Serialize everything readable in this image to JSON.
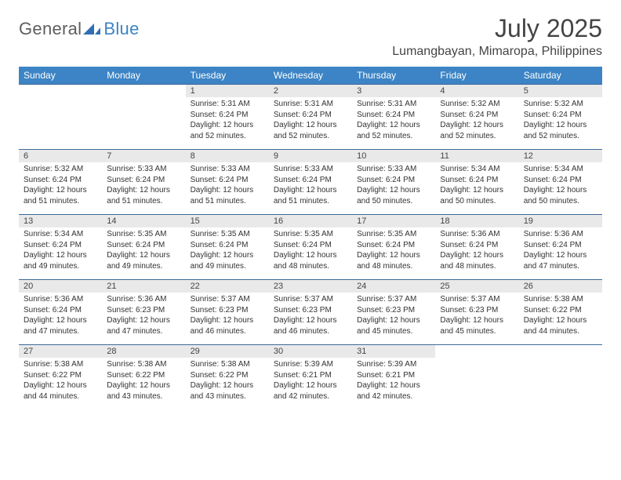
{
  "brand": {
    "part1": "General",
    "part2": "Blue",
    "mark_color": "#2f70b3"
  },
  "title": "July 2025",
  "subtitle": "Lumangbayan, Mimaropa, Philippines",
  "colors": {
    "header_bg": "#3c84c5",
    "header_text": "#ffffff",
    "daynum_bg": "#e9e9e9",
    "row_border": "#3c6a99",
    "page_bg": "#ffffff",
    "body_text": "#333333"
  },
  "days_of_week": [
    "Sunday",
    "Monday",
    "Tuesday",
    "Wednesday",
    "Thursday",
    "Friday",
    "Saturday"
  ],
  "weeks": [
    [
      null,
      null,
      {
        "n": "1",
        "sunrise": "5:31 AM",
        "sunset": "6:24 PM",
        "daylight": "12 hours and 52 minutes."
      },
      {
        "n": "2",
        "sunrise": "5:31 AM",
        "sunset": "6:24 PM",
        "daylight": "12 hours and 52 minutes."
      },
      {
        "n": "3",
        "sunrise": "5:31 AM",
        "sunset": "6:24 PM",
        "daylight": "12 hours and 52 minutes."
      },
      {
        "n": "4",
        "sunrise": "5:32 AM",
        "sunset": "6:24 PM",
        "daylight": "12 hours and 52 minutes."
      },
      {
        "n": "5",
        "sunrise": "5:32 AM",
        "sunset": "6:24 PM",
        "daylight": "12 hours and 52 minutes."
      }
    ],
    [
      {
        "n": "6",
        "sunrise": "5:32 AM",
        "sunset": "6:24 PM",
        "daylight": "12 hours and 51 minutes."
      },
      {
        "n": "7",
        "sunrise": "5:33 AM",
        "sunset": "6:24 PM",
        "daylight": "12 hours and 51 minutes."
      },
      {
        "n": "8",
        "sunrise": "5:33 AM",
        "sunset": "6:24 PM",
        "daylight": "12 hours and 51 minutes."
      },
      {
        "n": "9",
        "sunrise": "5:33 AM",
        "sunset": "6:24 PM",
        "daylight": "12 hours and 51 minutes."
      },
      {
        "n": "10",
        "sunrise": "5:33 AM",
        "sunset": "6:24 PM",
        "daylight": "12 hours and 50 minutes."
      },
      {
        "n": "11",
        "sunrise": "5:34 AM",
        "sunset": "6:24 PM",
        "daylight": "12 hours and 50 minutes."
      },
      {
        "n": "12",
        "sunrise": "5:34 AM",
        "sunset": "6:24 PM",
        "daylight": "12 hours and 50 minutes."
      }
    ],
    [
      {
        "n": "13",
        "sunrise": "5:34 AM",
        "sunset": "6:24 PM",
        "daylight": "12 hours and 49 minutes."
      },
      {
        "n": "14",
        "sunrise": "5:35 AM",
        "sunset": "6:24 PM",
        "daylight": "12 hours and 49 minutes."
      },
      {
        "n": "15",
        "sunrise": "5:35 AM",
        "sunset": "6:24 PM",
        "daylight": "12 hours and 49 minutes."
      },
      {
        "n": "16",
        "sunrise": "5:35 AM",
        "sunset": "6:24 PM",
        "daylight": "12 hours and 48 minutes."
      },
      {
        "n": "17",
        "sunrise": "5:35 AM",
        "sunset": "6:24 PM",
        "daylight": "12 hours and 48 minutes."
      },
      {
        "n": "18",
        "sunrise": "5:36 AM",
        "sunset": "6:24 PM",
        "daylight": "12 hours and 48 minutes."
      },
      {
        "n": "19",
        "sunrise": "5:36 AM",
        "sunset": "6:24 PM",
        "daylight": "12 hours and 47 minutes."
      }
    ],
    [
      {
        "n": "20",
        "sunrise": "5:36 AM",
        "sunset": "6:24 PM",
        "daylight": "12 hours and 47 minutes."
      },
      {
        "n": "21",
        "sunrise": "5:36 AM",
        "sunset": "6:23 PM",
        "daylight": "12 hours and 47 minutes."
      },
      {
        "n": "22",
        "sunrise": "5:37 AM",
        "sunset": "6:23 PM",
        "daylight": "12 hours and 46 minutes."
      },
      {
        "n": "23",
        "sunrise": "5:37 AM",
        "sunset": "6:23 PM",
        "daylight": "12 hours and 46 minutes."
      },
      {
        "n": "24",
        "sunrise": "5:37 AM",
        "sunset": "6:23 PM",
        "daylight": "12 hours and 45 minutes."
      },
      {
        "n": "25",
        "sunrise": "5:37 AM",
        "sunset": "6:23 PM",
        "daylight": "12 hours and 45 minutes."
      },
      {
        "n": "26",
        "sunrise": "5:38 AM",
        "sunset": "6:22 PM",
        "daylight": "12 hours and 44 minutes."
      }
    ],
    [
      {
        "n": "27",
        "sunrise": "5:38 AM",
        "sunset": "6:22 PM",
        "daylight": "12 hours and 44 minutes."
      },
      {
        "n": "28",
        "sunrise": "5:38 AM",
        "sunset": "6:22 PM",
        "daylight": "12 hours and 43 minutes."
      },
      {
        "n": "29",
        "sunrise": "5:38 AM",
        "sunset": "6:22 PM",
        "daylight": "12 hours and 43 minutes."
      },
      {
        "n": "30",
        "sunrise": "5:39 AM",
        "sunset": "6:21 PM",
        "daylight": "12 hours and 42 minutes."
      },
      {
        "n": "31",
        "sunrise": "5:39 AM",
        "sunset": "6:21 PM",
        "daylight": "12 hours and 42 minutes."
      },
      null,
      null
    ]
  ],
  "labels": {
    "sunrise": "Sunrise:",
    "sunset": "Sunset:",
    "daylight": "Daylight:"
  }
}
